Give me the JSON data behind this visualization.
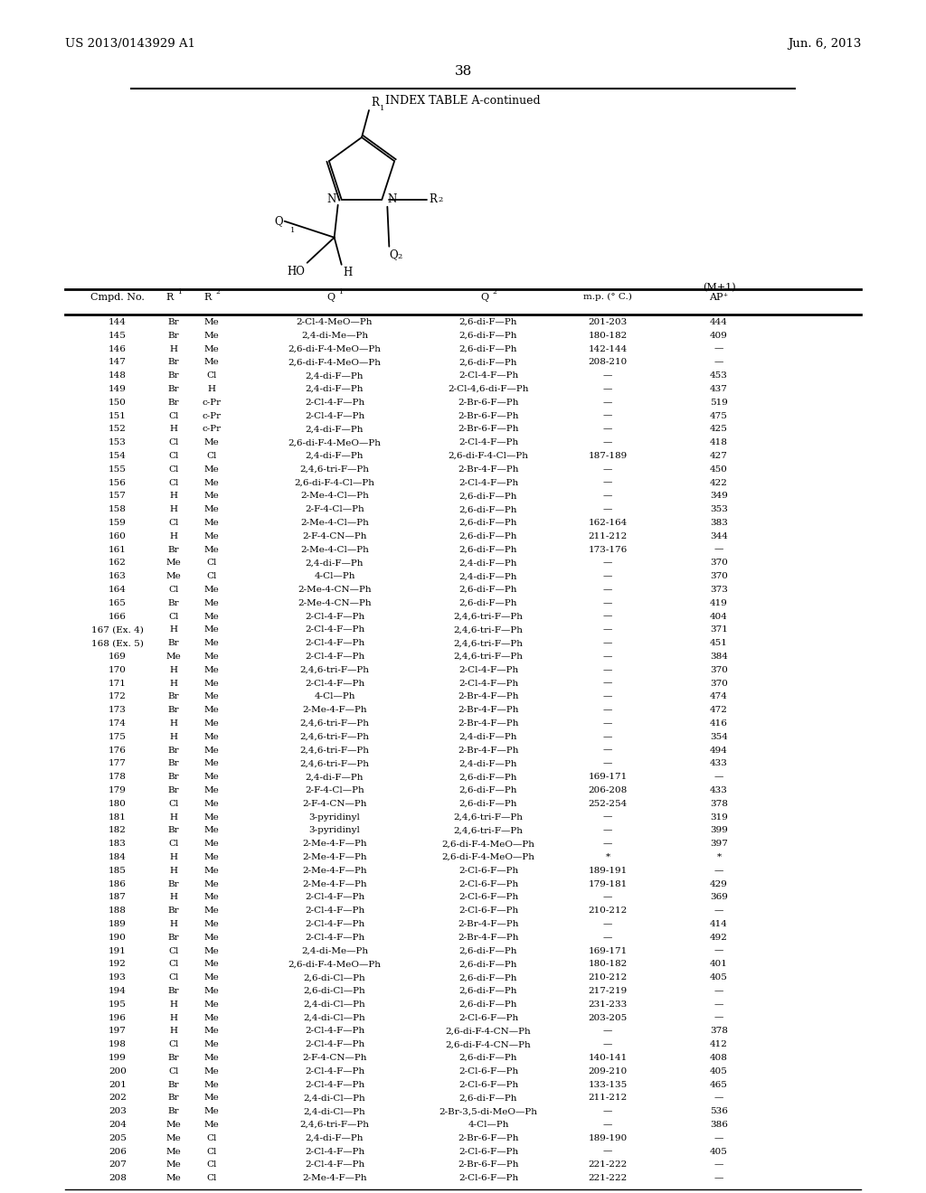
{
  "page_header_left": "US 2013/0143929 A1",
  "page_header_right": "Jun. 6, 2013",
  "page_number": "38",
  "table_title": "INDEX TABLE A-continued",
  "rows": [
    [
      "144",
      "Br",
      "Me",
      "2-Cl-4-MeO—Ph",
      "2,6-di-F—Ph",
      "201-203",
      "444"
    ],
    [
      "145",
      "Br",
      "Me",
      "2,4-di-Me—Ph",
      "2,6-di-F—Ph",
      "180-182",
      "409"
    ],
    [
      "146",
      "H",
      "Me",
      "2,6-di-F-4-MeO—Ph",
      "2,6-di-F—Ph",
      "142-144",
      "—"
    ],
    [
      "147",
      "Br",
      "Me",
      "2,6-di-F-4-MeO—Ph",
      "2,6-di-F—Ph",
      "208-210",
      "—"
    ],
    [
      "148",
      "Br",
      "Cl",
      "2,4-di-F—Ph",
      "2-Cl-4-F—Ph",
      "—",
      "453"
    ],
    [
      "149",
      "Br",
      "H",
      "2,4-di-F—Ph",
      "2-Cl-4,6-di-F—Ph",
      "—",
      "437"
    ],
    [
      "150",
      "Br",
      "c-Pr",
      "2-Cl-4-F—Ph",
      "2-Br-6-F—Ph",
      "—",
      "519"
    ],
    [
      "151",
      "Cl",
      "c-Pr",
      "2-Cl-4-F—Ph",
      "2-Br-6-F—Ph",
      "—",
      "475"
    ],
    [
      "152",
      "H",
      "c-Pr",
      "2,4-di-F—Ph",
      "2-Br-6-F—Ph",
      "—",
      "425"
    ],
    [
      "153",
      "Cl",
      "Me",
      "2,6-di-F-4-MeO—Ph",
      "2-Cl-4-F—Ph",
      "—",
      "418"
    ],
    [
      "154",
      "Cl",
      "Cl",
      "2,4-di-F—Ph",
      "2,6-di-F-4-Cl—Ph",
      "187-189",
      "427"
    ],
    [
      "155",
      "Cl",
      "Me",
      "2,4,6-tri-F—Ph",
      "2-Br-4-F—Ph",
      "—",
      "450"
    ],
    [
      "156",
      "Cl",
      "Me",
      "2,6-di-F-4-Cl—Ph",
      "2-Cl-4-F—Ph",
      "—",
      "422"
    ],
    [
      "157",
      "H",
      "Me",
      "2-Me-4-Cl—Ph",
      "2,6-di-F—Ph",
      "—",
      "349"
    ],
    [
      "158",
      "H",
      "Me",
      "2-F-4-Cl—Ph",
      "2,6-di-F—Ph",
      "—",
      "353"
    ],
    [
      "159",
      "Cl",
      "Me",
      "2-Me-4-Cl—Ph",
      "2,6-di-F—Ph",
      "162-164",
      "383"
    ],
    [
      "160",
      "H",
      "Me",
      "2-F-4-CN—Ph",
      "2,6-di-F—Ph",
      "211-212",
      "344"
    ],
    [
      "161",
      "Br",
      "Me",
      "2-Me-4-Cl—Ph",
      "2,6-di-F—Ph",
      "173-176",
      "—"
    ],
    [
      "162",
      "Me",
      "Cl",
      "2,4-di-F—Ph",
      "2,4-di-F—Ph",
      "—",
      "370"
    ],
    [
      "163",
      "Me",
      "Cl",
      "4-Cl—Ph",
      "2,4-di-F—Ph",
      "—",
      "370"
    ],
    [
      "164",
      "Cl",
      "Me",
      "2-Me-4-CN—Ph",
      "2,6-di-F—Ph",
      "—",
      "373"
    ],
    [
      "165",
      "Br",
      "Me",
      "2-Me-4-CN—Ph",
      "2,6-di-F—Ph",
      "—",
      "419"
    ],
    [
      "166",
      "Cl",
      "Me",
      "2-Cl-4-F—Ph",
      "2,4,6-tri-F—Ph",
      "—",
      "404"
    ],
    [
      "167 (Ex. 4)",
      "H",
      "Me",
      "2-Cl-4-F—Ph",
      "2,4,6-tri-F—Ph",
      "—",
      "371"
    ],
    [
      "168 (Ex. 5)",
      "Br",
      "Me",
      "2-Cl-4-F—Ph",
      "2,4,6-tri-F—Ph",
      "—",
      "451"
    ],
    [
      "169",
      "Me",
      "Me",
      "2-Cl-4-F—Ph",
      "2,4,6-tri-F—Ph",
      "—",
      "384"
    ],
    [
      "170",
      "H",
      "Me",
      "2,4,6-tri-F—Ph",
      "2-Cl-4-F—Ph",
      "—",
      "370"
    ],
    [
      "171",
      "H",
      "Me",
      "2-Cl-4-F—Ph",
      "2-Cl-4-F—Ph",
      "—",
      "370"
    ],
    [
      "172",
      "Br",
      "Me",
      "4-Cl—Ph",
      "2-Br-4-F—Ph",
      "—",
      "474"
    ],
    [
      "173",
      "Br",
      "Me",
      "2-Me-4-F—Ph",
      "2-Br-4-F—Ph",
      "—",
      "472"
    ],
    [
      "174",
      "H",
      "Me",
      "2,4,6-tri-F—Ph",
      "2-Br-4-F—Ph",
      "—",
      "416"
    ],
    [
      "175",
      "H",
      "Me",
      "2,4,6-tri-F—Ph",
      "2,4-di-F—Ph",
      "—",
      "354"
    ],
    [
      "176",
      "Br",
      "Me",
      "2,4,6-tri-F—Ph",
      "2-Br-4-F—Ph",
      "—",
      "494"
    ],
    [
      "177",
      "Br",
      "Me",
      "2,4,6-tri-F—Ph",
      "2,4-di-F—Ph",
      "—",
      "433"
    ],
    [
      "178",
      "Br",
      "Me",
      "2,4-di-F—Ph",
      "2,6-di-F—Ph",
      "169-171",
      "—"
    ],
    [
      "179",
      "Br",
      "Me",
      "2-F-4-Cl—Ph",
      "2,6-di-F—Ph",
      "206-208",
      "433"
    ],
    [
      "180",
      "Cl",
      "Me",
      "2-F-4-CN—Ph",
      "2,6-di-F—Ph",
      "252-254",
      "378"
    ],
    [
      "181",
      "H",
      "Me",
      "3-pyridinyl",
      "2,4,6-tri-F—Ph",
      "—",
      "319"
    ],
    [
      "182",
      "Br",
      "Me",
      "3-pyridinyl",
      "2,4,6-tri-F—Ph",
      "—",
      "399"
    ],
    [
      "183",
      "Cl",
      "Me",
      "2-Me-4-F—Ph",
      "2,6-di-F-4-MeO—Ph",
      "—",
      "397"
    ],
    [
      "184",
      "H",
      "Me",
      "2-Me-4-F—Ph",
      "2,6-di-F-4-MeO—Ph",
      "*",
      "*"
    ],
    [
      "185",
      "H",
      "Me",
      "2-Me-4-F—Ph",
      "2-Cl-6-F—Ph",
      "189-191",
      "—"
    ],
    [
      "186",
      "Br",
      "Me",
      "2-Me-4-F—Ph",
      "2-Cl-6-F—Ph",
      "179-181",
      "429"
    ],
    [
      "187",
      "H",
      "Me",
      "2-Cl-4-F—Ph",
      "2-Cl-6-F—Ph",
      "—",
      "369"
    ],
    [
      "188",
      "Br",
      "Me",
      "2-Cl-4-F—Ph",
      "2-Cl-6-F—Ph",
      "210-212",
      "—"
    ],
    [
      "189",
      "H",
      "Me",
      "2-Cl-4-F—Ph",
      "2-Br-4-F—Ph",
      "—",
      "414"
    ],
    [
      "190",
      "Br",
      "Me",
      "2-Cl-4-F—Ph",
      "2-Br-4-F—Ph",
      "—",
      "492"
    ],
    [
      "191",
      "Cl",
      "Me",
      "2,4-di-Me—Ph",
      "2,6-di-F—Ph",
      "169-171",
      "—"
    ],
    [
      "192",
      "Cl",
      "Me",
      "2,6-di-F-4-MeO—Ph",
      "2,6-di-F—Ph",
      "180-182",
      "401"
    ],
    [
      "193",
      "Cl",
      "Me",
      "2,6-di-Cl—Ph",
      "2,6-di-F—Ph",
      "210-212",
      "405"
    ],
    [
      "194",
      "Br",
      "Me",
      "2,6-di-Cl—Ph",
      "2,6-di-F—Ph",
      "217-219",
      "—"
    ],
    [
      "195",
      "H",
      "Me",
      "2,4-di-Cl—Ph",
      "2,6-di-F—Ph",
      "231-233",
      "—"
    ],
    [
      "196",
      "H",
      "Me",
      "2,4-di-Cl—Ph",
      "2-Cl-6-F—Ph",
      "203-205",
      "—"
    ],
    [
      "197",
      "H",
      "Me",
      "2-Cl-4-F—Ph",
      "2,6-di-F-4-CN—Ph",
      "—",
      "378"
    ],
    [
      "198",
      "Cl",
      "Me",
      "2-Cl-4-F—Ph",
      "2,6-di-F-4-CN—Ph",
      "—",
      "412"
    ],
    [
      "199",
      "Br",
      "Me",
      "2-F-4-CN—Ph",
      "2,6-di-F—Ph",
      "140-141",
      "408"
    ],
    [
      "200",
      "Cl",
      "Me",
      "2-Cl-4-F—Ph",
      "2-Cl-6-F—Ph",
      "209-210",
      "405"
    ],
    [
      "201",
      "Br",
      "Me",
      "2-Cl-4-F—Ph",
      "2-Cl-6-F—Ph",
      "133-135",
      "465"
    ],
    [
      "202",
      "Br",
      "Me",
      "2,4-di-Cl—Ph",
      "2,6-di-F—Ph",
      "211-212",
      "—"
    ],
    [
      "203",
      "Br",
      "Me",
      "2,4-di-Cl—Ph",
      "2-Br-3,5-di-MeO—Ph",
      "—",
      "536"
    ],
    [
      "204",
      "Me",
      "Me",
      "2,4,6-tri-F—Ph",
      "4-Cl—Ph",
      "—",
      "386"
    ],
    [
      "205",
      "Me",
      "Cl",
      "2,4-di-F—Ph",
      "2-Br-6-F—Ph",
      "189-190",
      "—"
    ],
    [
      "206",
      "Me",
      "Cl",
      "2-Cl-4-F—Ph",
      "2-Cl-6-F—Ph",
      "—",
      "405"
    ],
    [
      "207",
      "Me",
      "Cl",
      "2-Cl-4-F—Ph",
      "2-Br-6-F—Ph",
      "221-222",
      "—"
    ],
    [
      "208",
      "Me",
      "Cl",
      "2-Me-4-F—Ph",
      "2-Cl-6-F—Ph",
      "221-222",
      "—"
    ]
  ],
  "bg_color": "#ffffff",
  "text_color": "#000000"
}
